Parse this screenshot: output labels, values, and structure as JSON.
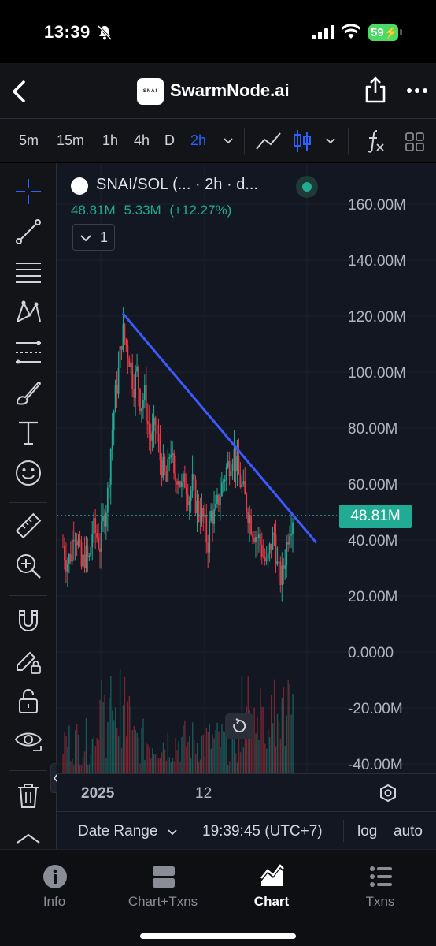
{
  "status_bar": {
    "time": "13:39",
    "battery": "59"
  },
  "header": {
    "logo_text": "SNAI",
    "title": "SwarmNode.ai"
  },
  "toolbar": {
    "timeframes": [
      "5m",
      "15m",
      "1h",
      "4h",
      "D",
      "2h"
    ],
    "active_timeframe": "2h"
  },
  "legend": {
    "symbol": "SNAI/SOL (... · 2h · d...",
    "price": "48.81M",
    "change": "5.33M",
    "change_pct": "(+12.27%)",
    "indicator_count": "1"
  },
  "chart_data": {
    "type": "candlestick",
    "yaxis_ticks": [
      "160.00M",
      "140.00M",
      "120.00M",
      "100.00M",
      "80.00M",
      "60.00M",
      "40.00M",
      "20.00M",
      "0.0000",
      "-20.00M",
      "-40.00M"
    ],
    "last_price_label": "48.81M",
    "ylim": [
      -40000000,
      160000000
    ],
    "xaxis_labels": [
      "2025",
      "12"
    ],
    "trendline": {
      "start": 121000000,
      "end": 39000000
    },
    "candles_close_path": [
      38,
      32,
      34,
      45,
      40,
      30,
      35,
      32,
      44,
      42,
      38,
      48,
      55,
      75,
      90,
      100,
      115,
      110,
      105,
      95,
      100,
      88,
      92,
      80,
      75,
      82,
      70,
      65,
      60,
      75,
      60,
      65,
      58,
      62,
      55,
      60,
      52,
      50,
      47,
      38,
      50,
      48,
      55,
      60,
      65,
      68,
      72,
      65,
      60,
      55,
      50,
      45,
      42,
      40,
      35,
      30,
      38,
      42,
      28,
      26,
      35,
      45,
      48.81
    ],
    "colors": {
      "up": "#22ab94",
      "down": "#f23645",
      "trendline": "#3d5afe"
    }
  },
  "time_axis": {
    "label_2025": "2025",
    "label_12": "12"
  },
  "bottom_info": {
    "date_range": "Date Range",
    "clock": "19:39:45 (UTC+7)",
    "log": "log",
    "auto": "auto"
  },
  "bottom_nav": {
    "items": [
      {
        "label": "Info",
        "icon": "info-icon"
      },
      {
        "label": "Chart+Txns",
        "icon": "chart-txns-icon"
      },
      {
        "label": "Chart",
        "icon": "chart-icon"
      },
      {
        "label": "Txns",
        "icon": "list-icon"
      }
    ],
    "active": "Chart"
  }
}
